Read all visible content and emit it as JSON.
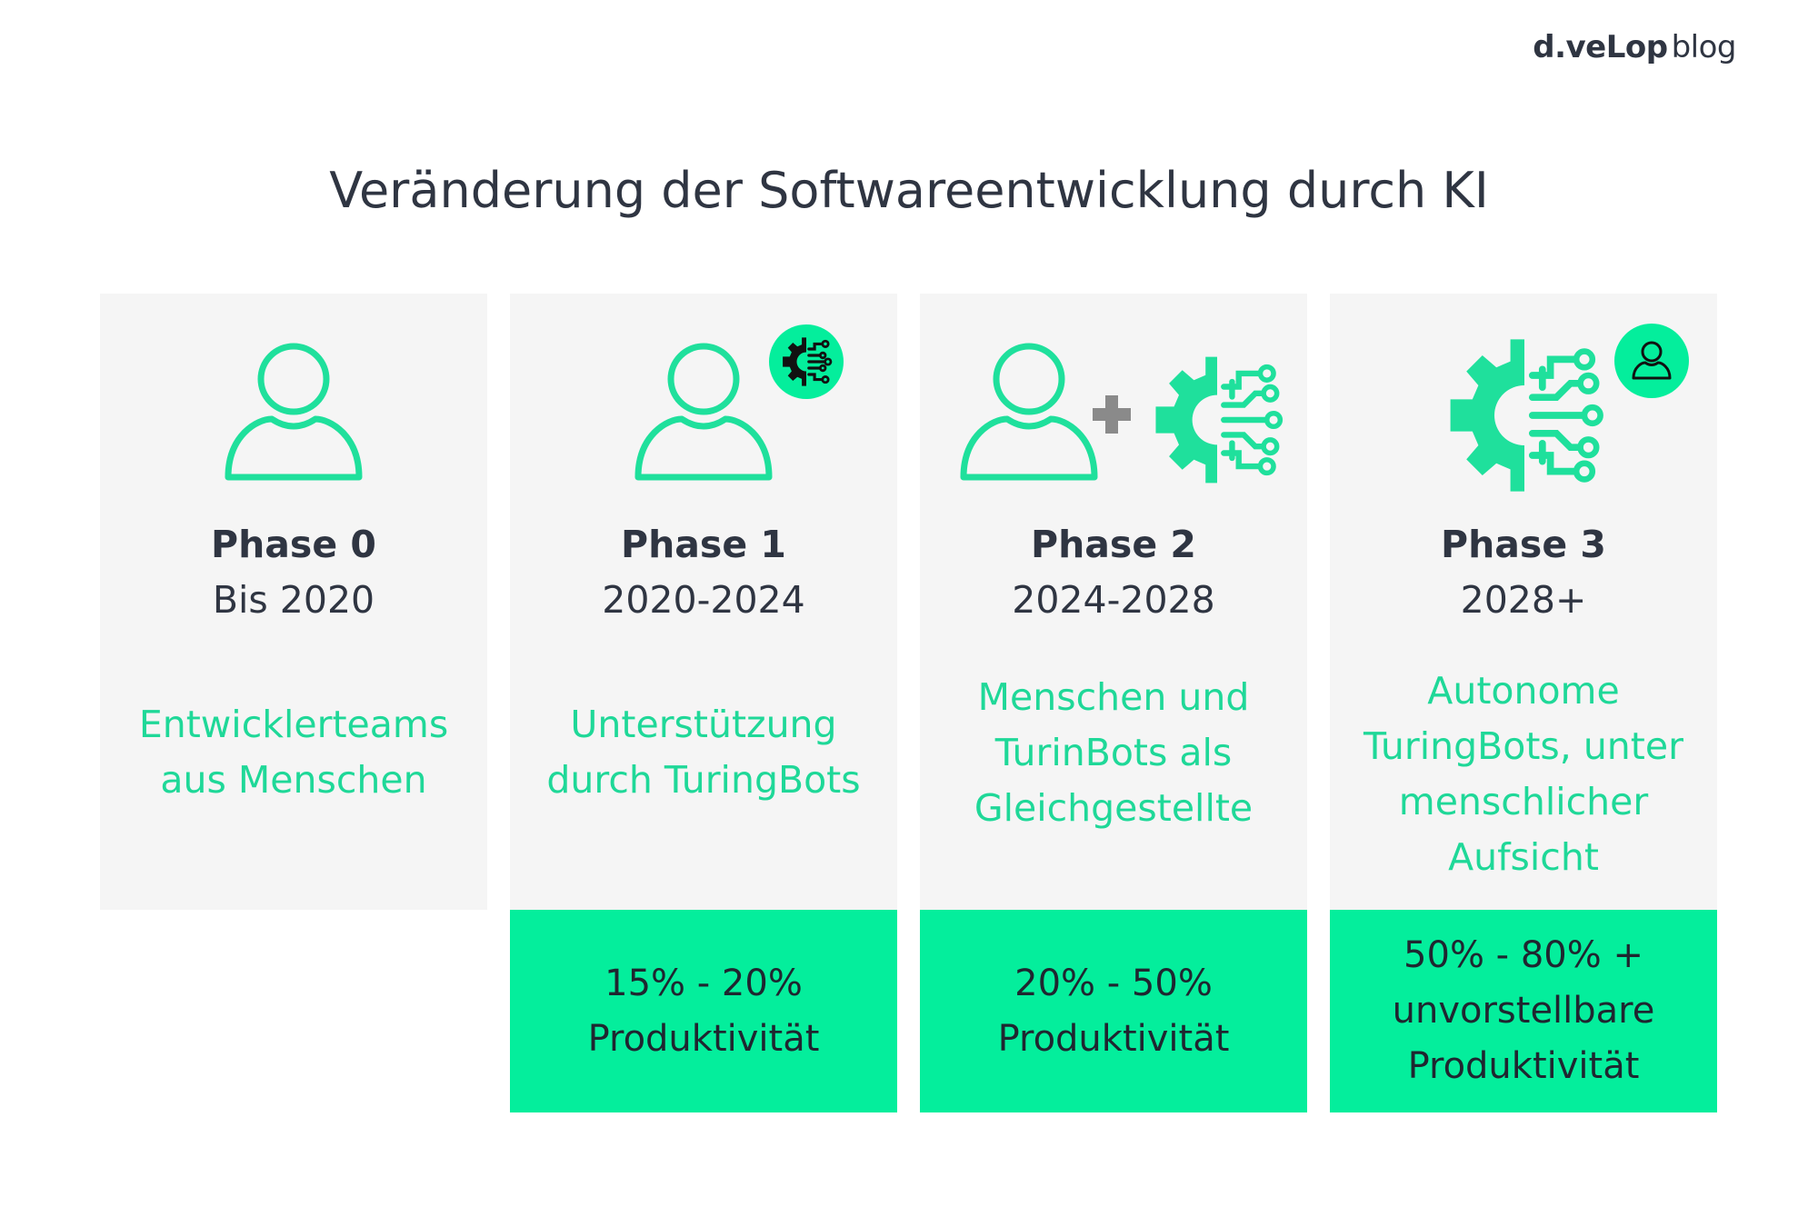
{
  "logo": {
    "brand": "d.veLop",
    "suffix": "blog"
  },
  "title": "Veränderung der Softwareentwicklung durch KI",
  "colors": {
    "accent": "#04ee9c",
    "accent_text": "#1fd898",
    "panel": "#f5f5f5",
    "text": "#2f3542"
  },
  "phases": [
    {
      "label": "Phase 0",
      "years": "Bis 2020",
      "description": "Entwicklerteams aus Menschen",
      "productivity": "",
      "icons": [
        "person-icon"
      ]
    },
    {
      "label": "Phase 1",
      "years": "2020-2024",
      "description": "Unterstützung durch TuringBots",
      "productivity": "15% - 20% Produktivität",
      "icons": [
        "person-icon",
        "ai-gear-badge-icon"
      ]
    },
    {
      "label": "Phase 2",
      "years": "2024-2028",
      "description": "Menschen und TurinBots als Gleichgestellte",
      "productivity": "20% - 50% Produktivität",
      "icons": [
        "person-icon",
        "plus-icon",
        "ai-gear-icon"
      ]
    },
    {
      "label": "Phase 3",
      "years": "2028+",
      "description": "Autonome TuringBots, unter menschlicher Aufsicht",
      "productivity": "50% - 80% + unvorstellbare Produktivität",
      "icons": [
        "ai-gear-icon",
        "person-badge-icon"
      ]
    }
  ]
}
